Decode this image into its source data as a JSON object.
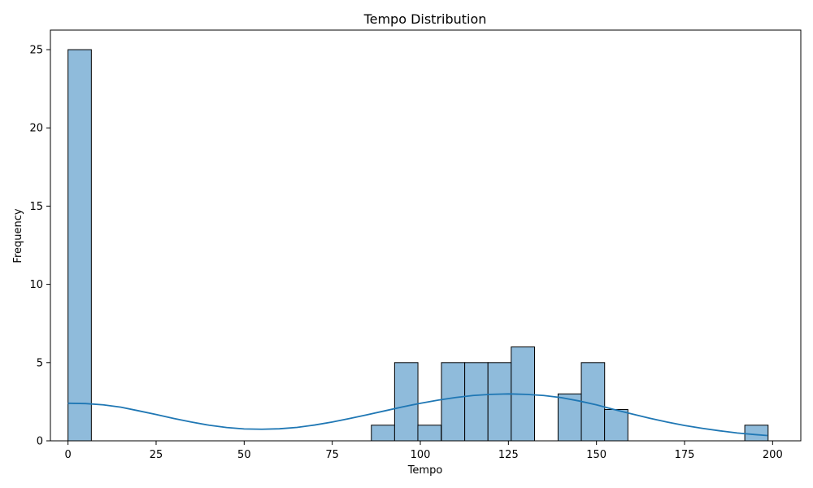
{
  "chart_data": {
    "type": "bar",
    "title": "Tempo Distribution",
    "xlabel": "Tempo",
    "ylabel": "Frequency",
    "xlim": [
      -5,
      208
    ],
    "ylim": [
      0,
      26.25
    ],
    "xticks": [
      0,
      25,
      50,
      75,
      100,
      125,
      150,
      175,
      200
    ],
    "yticks": [
      0,
      5,
      10,
      15,
      20,
      25
    ],
    "bin_width": 6.62,
    "bins": [
      {
        "start": 0.0,
        "count": 25
      },
      {
        "start": 86.1,
        "count": 1
      },
      {
        "start": 92.7,
        "count": 5
      },
      {
        "start": 99.3,
        "count": 1
      },
      {
        "start": 106.0,
        "count": 5
      },
      {
        "start": 112.6,
        "count": 5
      },
      {
        "start": 119.2,
        "count": 5
      },
      {
        "start": 125.8,
        "count": 6
      },
      {
        "start": 139.1,
        "count": 3
      },
      {
        "start": 145.7,
        "count": 5
      },
      {
        "start": 152.3,
        "count": 2
      },
      {
        "start": 192.1,
        "count": 1
      }
    ],
    "kde": {
      "x": [
        0,
        5,
        10,
        15,
        20,
        25,
        30,
        35,
        40,
        45,
        50,
        55,
        60,
        65,
        70,
        75,
        80,
        85,
        90,
        95,
        100,
        105,
        110,
        115,
        120,
        125,
        130,
        135,
        140,
        145,
        150,
        155,
        160,
        165,
        170,
        175,
        180,
        185,
        190,
        195,
        198.5
      ],
      "y": [
        2.4,
        2.38,
        2.3,
        2.15,
        1.92,
        1.68,
        1.43,
        1.2,
        1.0,
        0.85,
        0.76,
        0.74,
        0.77,
        0.86,
        1.01,
        1.2,
        1.43,
        1.67,
        1.92,
        2.17,
        2.4,
        2.6,
        2.77,
        2.9,
        2.97,
        3.0,
        2.97,
        2.9,
        2.76,
        2.55,
        2.3,
        2.0,
        1.72,
        1.45,
        1.2,
        0.98,
        0.8,
        0.64,
        0.5,
        0.4,
        0.34
      ]
    },
    "grid": false,
    "bar_color": "#8fbbdb",
    "bar_edge_color": "#000000",
    "kde_color": "#1f77b4"
  }
}
